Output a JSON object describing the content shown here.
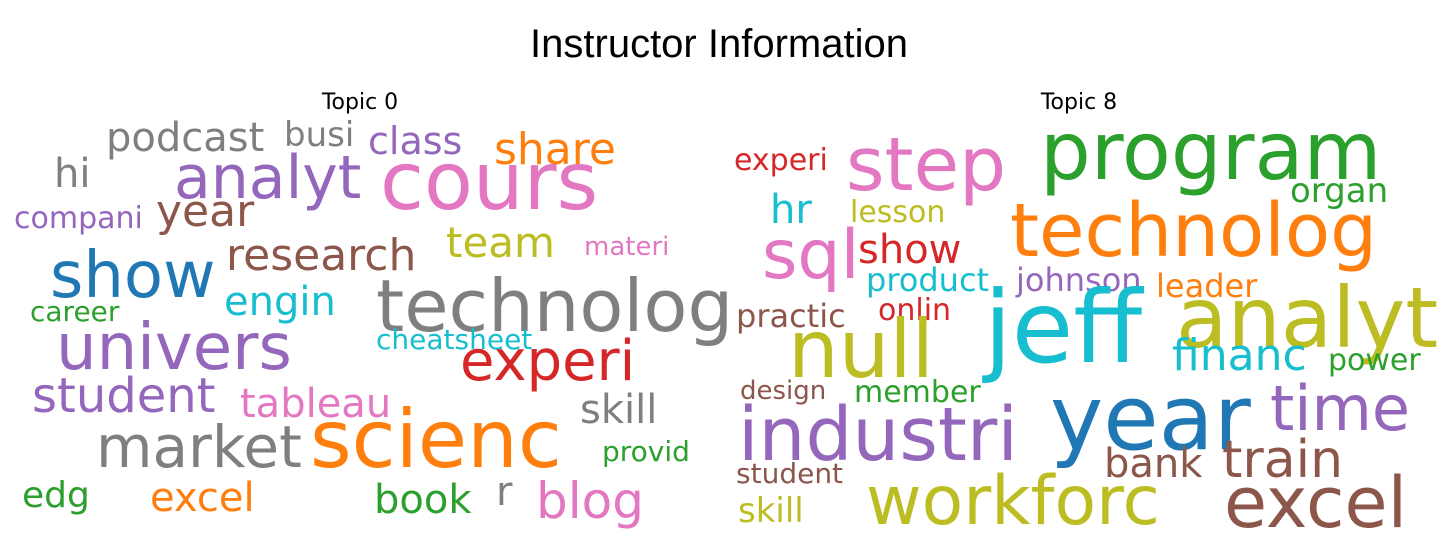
{
  "title": "Instructor Information",
  "panels": [
    {
      "title": "Topic 0",
      "words": [
        {
          "text": "podcast",
          "color": "#7f7f7f"
        },
        {
          "text": "busi",
          "color": "#7f7f7f"
        },
        {
          "text": "class",
          "color": "#9467bd"
        },
        {
          "text": "share",
          "color": "#ff7f0e"
        },
        {
          "text": "hi",
          "color": "#7f7f7f"
        },
        {
          "text": "analyt",
          "color": "#9467bd"
        },
        {
          "text": "cours",
          "color": "#e377c2"
        },
        {
          "text": "compani",
          "color": "#9467bd"
        },
        {
          "text": "year",
          "color": "#8c564b"
        },
        {
          "text": "team",
          "color": "#bcbd22"
        },
        {
          "text": "research",
          "color": "#8c564b"
        },
        {
          "text": "materi",
          "color": "#e377c2"
        },
        {
          "text": "show",
          "color": "#1f77b4"
        },
        {
          "text": "engin",
          "color": "#17becf"
        },
        {
          "text": "technolog",
          "color": "#7f7f7f"
        },
        {
          "text": "career",
          "color": "#2ca02c"
        },
        {
          "text": "cheatsheet",
          "color": "#17becf"
        },
        {
          "text": "univers",
          "color": "#9467bd"
        },
        {
          "text": "experi",
          "color": "#d62728"
        },
        {
          "text": "student",
          "color": "#9467bd"
        },
        {
          "text": "tableau",
          "color": "#e377c2"
        },
        {
          "text": "skill",
          "color": "#7f7f7f"
        },
        {
          "text": "market",
          "color": "#7f7f7f"
        },
        {
          "text": "scienc",
          "color": "#ff7f0e"
        },
        {
          "text": "provid",
          "color": "#2ca02c"
        },
        {
          "text": "edg",
          "color": "#2ca02c"
        },
        {
          "text": "excel",
          "color": "#ff7f0e"
        },
        {
          "text": "book",
          "color": "#2ca02c"
        },
        {
          "text": "r",
          "color": "#7f7f7f"
        },
        {
          "text": "blog",
          "color": "#e377c2"
        }
      ]
    },
    {
      "title": "Topic 8",
      "words": [
        {
          "text": "experi",
          "color": "#d62728"
        },
        {
          "text": "step",
          "color": "#e377c2"
        },
        {
          "text": "program",
          "color": "#2ca02c"
        },
        {
          "text": "organ",
          "color": "#2ca02c"
        },
        {
          "text": "hr",
          "color": "#17becf"
        },
        {
          "text": "lesson",
          "color": "#bcbd22"
        },
        {
          "text": "technolog",
          "color": "#ff7f0e"
        },
        {
          "text": "sql",
          "color": "#e377c2"
        },
        {
          "text": "show",
          "color": "#d62728"
        },
        {
          "text": "product",
          "color": "#17becf"
        },
        {
          "text": "johnson",
          "color": "#9467bd"
        },
        {
          "text": "leader",
          "color": "#ff7f0e"
        },
        {
          "text": "analyt",
          "color": "#bcbd22"
        },
        {
          "text": "practic",
          "color": "#8c564b"
        },
        {
          "text": "onlin",
          "color": "#d62728"
        },
        {
          "text": "jeff",
          "color": "#17becf"
        },
        {
          "text": "null",
          "color": "#bcbd22"
        },
        {
          "text": "financ",
          "color": "#17becf"
        },
        {
          "text": "power",
          "color": "#2ca02c"
        },
        {
          "text": "design",
          "color": "#8c564b"
        },
        {
          "text": "member",
          "color": "#2ca02c"
        },
        {
          "text": "year",
          "color": "#1f77b4"
        },
        {
          "text": "time",
          "color": "#9467bd"
        },
        {
          "text": "industri",
          "color": "#9467bd"
        },
        {
          "text": "bank",
          "color": "#8c564b"
        },
        {
          "text": "train",
          "color": "#8c564b"
        },
        {
          "text": "student",
          "color": "#8c564b"
        },
        {
          "text": "workforc",
          "color": "#bcbd22"
        },
        {
          "text": "excel",
          "color": "#8c564b"
        },
        {
          "text": "skill",
          "color": "#bcbd22"
        }
      ]
    }
  ]
}
